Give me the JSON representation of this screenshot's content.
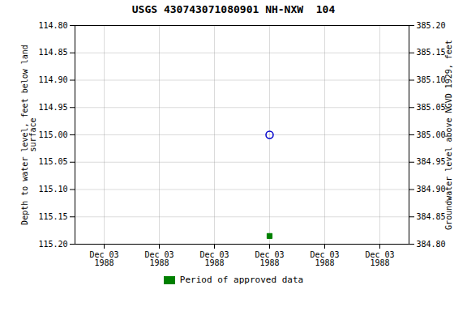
{
  "chart_data": {
    "type": "scatter",
    "title": "USGS 430743071080901 NH-NXW  104",
    "ylabel": "Depth to water level, feet below land\nsurface",
    "y2label": "Groundwater level above NGVD 1929, feet",
    "categories": [
      "Dec 03\n1988",
      "Dec 03\n1988",
      "Dec 03\n1988",
      "Dec 03\n1988",
      "Dec 03\n1988",
      "Dec 03\n1988"
    ],
    "series": [
      {
        "color": "#0000cc",
        "marker": "circle_open",
        "values": [
          null,
          null,
          null,
          115.0,
          null,
          null
        ]
      },
      {
        "name": "Period of approved data",
        "color": "#008000",
        "marker": "square",
        "values": [
          null,
          null,
          null,
          115.185,
          null,
          null
        ]
      }
    ],
    "ylim": [
      115.2,
      114.8
    ],
    "yticks": [
      {
        "value": 114.8,
        "label": "114.80"
      },
      {
        "value": 114.85,
        "label": "114.85"
      },
      {
        "value": 114.9,
        "label": "114.90"
      },
      {
        "value": 114.95,
        "label": "114.95"
      },
      {
        "value": 115.0,
        "label": "115.00"
      },
      {
        "value": 115.05,
        "label": "115.05"
      },
      {
        "value": 115.1,
        "label": "115.10"
      },
      {
        "value": 115.15,
        "label": "115.15"
      },
      {
        "value": 115.2,
        "label": "115.20"
      }
    ],
    "y2lim": [
      384.8,
      385.2
    ],
    "y2ticks": [
      {
        "value": 385.2,
        "label": "385.20"
      },
      {
        "value": 385.15,
        "label": "385.15"
      },
      {
        "value": 385.1,
        "label": "385.10"
      },
      {
        "value": 385.05,
        "label": "385.05"
      },
      {
        "value": 385.0,
        "label": "385.00"
      },
      {
        "value": 384.95,
        "label": "384.95"
      },
      {
        "value": 384.9,
        "label": "384.90"
      },
      {
        "value": 384.85,
        "label": "384.85"
      },
      {
        "value": 384.8,
        "label": "384.80"
      }
    ],
    "grid": true,
    "legend": "bottom"
  }
}
